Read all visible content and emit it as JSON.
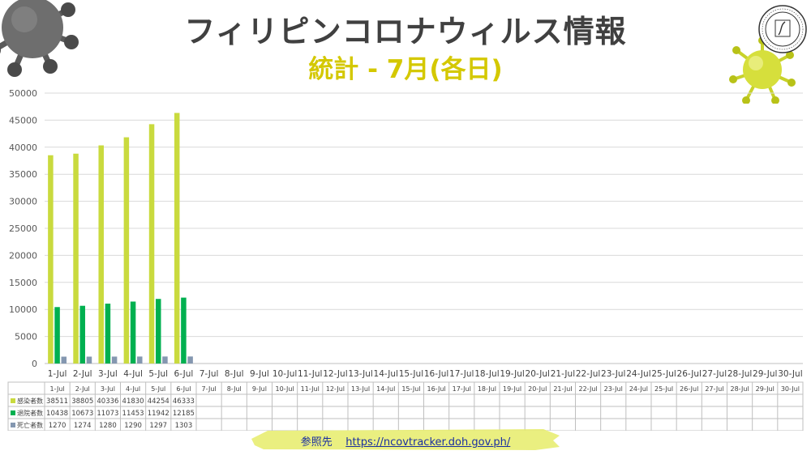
{
  "title": "フィリピンコロナウィルス情報",
  "subtitle": "統計 - 7月(各日)",
  "source_label": "参照先",
  "source_url": "https://ncovtracker.doh.gov.ph/",
  "colors": {
    "title": "#404040",
    "subtitle": "#d4c800",
    "infected": "#c9da3e",
    "recovered": "#00b050",
    "deaths": "#8497b0",
    "grid": "#d9d9d9"
  },
  "chart_data": {
    "type": "bar",
    "categories": [
      "1-Jul",
      "2-Jul",
      "3-Jul",
      "4-Jul",
      "5-Jul",
      "6-Jul",
      "7-Jul",
      "8-Jul",
      "9-Jul",
      "10-Jul",
      "11-Jul",
      "12-Jul",
      "13-Jul",
      "14-Jul",
      "15-Jul",
      "16-Jul",
      "17-Jul",
      "18-Jul",
      "19-Jul",
      "20-Jul",
      "21-Jul",
      "22-Jul",
      "23-Jul",
      "24-Jul",
      "25-Jul",
      "26-Jul",
      "27-Jul",
      "28-Jul",
      "29-Jul",
      "30-Jul"
    ],
    "series": [
      {
        "name": "感染者数",
        "color": "#c9da3e",
        "values": [
          38511,
          38805,
          40336,
          41830,
          44254,
          46333,
          null,
          null,
          null,
          null,
          null,
          null,
          null,
          null,
          null,
          null,
          null,
          null,
          null,
          null,
          null,
          null,
          null,
          null,
          null,
          null,
          null,
          null,
          null,
          null
        ]
      },
      {
        "name": "退院者数",
        "color": "#00b050",
        "values": [
          10438,
          10673,
          11073,
          11453,
          11942,
          12185,
          null,
          null,
          null,
          null,
          null,
          null,
          null,
          null,
          null,
          null,
          null,
          null,
          null,
          null,
          null,
          null,
          null,
          null,
          null,
          null,
          null,
          null,
          null,
          null
        ]
      },
      {
        "name": "死亡者数",
        "color": "#8497b0",
        "values": [
          1270,
          1274,
          1280,
          1290,
          1297,
          1303,
          null,
          null,
          null,
          null,
          null,
          null,
          null,
          null,
          null,
          null,
          null,
          null,
          null,
          null,
          null,
          null,
          null,
          null,
          null,
          null,
          null,
          null,
          null,
          null
        ]
      }
    ],
    "yticks": [
      "0",
      "5000",
      "10000",
      "15000",
      "20000",
      "25000",
      "30000",
      "35000",
      "40000",
      "45000",
      "50000"
    ],
    "ylim": [
      0,
      50000
    ],
    "grid": true,
    "legend": "data-table"
  }
}
